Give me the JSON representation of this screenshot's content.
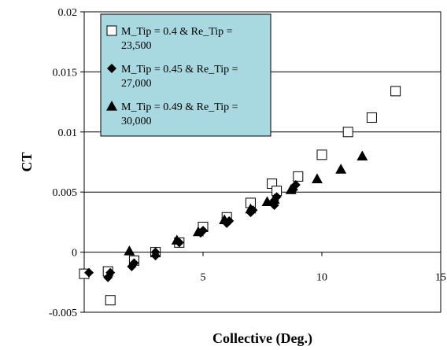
{
  "chart_data": {
    "type": "scatter",
    "title": "",
    "xlabel": "Collective (Deg.)",
    "ylabel": "CT",
    "xlim": [
      0,
      15
    ],
    "ylim": [
      -0.005,
      0.02
    ],
    "xticks": [
      5,
      10,
      15
    ],
    "yticks": [
      -0.005,
      0,
      0.005,
      0.01,
      0.015,
      0.02
    ],
    "xtick_labels": [
      "5",
      "10",
      "15"
    ],
    "ytick_labels": [
      "-0.005",
      "0",
      "0.005",
      "0.01",
      "0.015",
      "0.02"
    ],
    "grid": "horizontal",
    "legend_position": "top-left",
    "legend_bg": "#a8d8e0",
    "series": [
      {
        "name": "M_Tip = 0.4 & Re_Tip = 23,500",
        "marker": "square-open",
        "color": "#000000",
        "x": [
          0.0,
          1.0,
          1.1,
          2.1,
          3.0,
          4.0,
          5.0,
          6.0,
          7.0,
          7.9,
          8.1,
          9.0,
          10.0,
          11.1,
          12.1,
          13.1
        ],
        "y": [
          -0.0018,
          -0.0016,
          -0.004,
          -0.0007,
          0.0,
          0.0008,
          0.0021,
          0.0029,
          0.0041,
          0.0057,
          0.0051,
          0.0063,
          0.0081,
          0.01,
          0.0112,
          0.0134
        ]
      },
      {
        "name": "M_Tip = 0.45 & Re_Tip = 27,000",
        "marker": "diamond",
        "color": "#000000",
        "x": [
          0.2,
          1.0,
          1.1,
          2.0,
          2.1,
          3.0,
          3.0,
          4.0,
          4.9,
          5.0,
          6.0,
          6.1,
          7.0,
          7.1,
          8.0,
          8.0,
          8.1,
          8.8,
          8.9
        ],
        "y": [
          -0.0017,
          -0.0021,
          -0.0017,
          -0.0012,
          -0.0009,
          -0.0003,
          0.0,
          0.0008,
          0.0016,
          0.0018,
          0.0024,
          0.0026,
          0.0033,
          0.0035,
          0.0039,
          0.0043,
          0.0046,
          0.0052,
          0.0056
        ]
      },
      {
        "name": "M_Tip = 0.49 & Re_Tip = 30,000",
        "marker": "triangle",
        "color": "#000000",
        "x": [
          1.9,
          3.9,
          4.8,
          5.9,
          7.0,
          7.7,
          8.0,
          8.7,
          9.8,
          10.8,
          11.7
        ],
        "y": [
          0.0001,
          0.001,
          0.0017,
          0.0027,
          0.0036,
          0.0042,
          0.0044,
          0.0052,
          0.0061,
          0.0069,
          0.008
        ]
      }
    ]
  }
}
